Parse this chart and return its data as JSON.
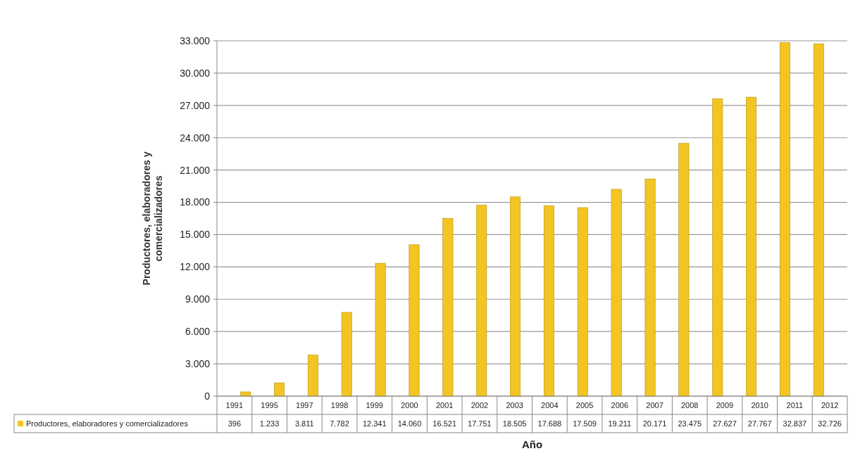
{
  "chart_data": {
    "type": "bar",
    "xlabel": "Año",
    "ylabel": "Productores, elaboradores y comercializadores",
    "categories": [
      "1991",
      "1995",
      "1997",
      "1998",
      "1999",
      "2000",
      "2001",
      "2002",
      "2003",
      "2004",
      "2005",
      "2006",
      "2007",
      "2008",
      "2009",
      "2010",
      "2011",
      "2012"
    ],
    "series": [
      {
        "name": "Productores, elaboradores y comercializadores",
        "color": "#f2c522",
        "values": [
          396,
          1233,
          3811,
          7782,
          12341,
          14060,
          16521,
          17751,
          18505,
          17688,
          17509,
          19211,
          20171,
          23475,
          27627,
          27767,
          32837,
          32726
        ],
        "value_labels": [
          "396",
          "1.233",
          "3.811",
          "7.782",
          "12.341",
          "14.060",
          "16.521",
          "17.751",
          "18.505",
          "17.688",
          "17.509",
          "19.211",
          "20.171",
          "23.475",
          "27.627",
          "27.767",
          "32.837",
          "32.726"
        ]
      }
    ],
    "ylim": [
      0,
      33000
    ],
    "yticks": [
      {
        "value": 0,
        "label": "0"
      },
      {
        "value": 3000,
        "label": "3.000"
      },
      {
        "value": 6000,
        "label": "6.000"
      },
      {
        "value": 9000,
        "label": "9.000"
      },
      {
        "value": 12000,
        "label": "12.000"
      },
      {
        "value": 15000,
        "label": "15.000"
      },
      {
        "value": 18000,
        "label": "18.000"
      },
      {
        "value": 21000,
        "label": "21.000"
      },
      {
        "value": 24000,
        "label": "24.000"
      },
      {
        "value": 27000,
        "label": "27.000"
      },
      {
        "value": 30000,
        "label": "30.000"
      },
      {
        "value": 33000,
        "label": "33.000"
      }
    ],
    "grid": "y",
    "legend": "bottom"
  }
}
